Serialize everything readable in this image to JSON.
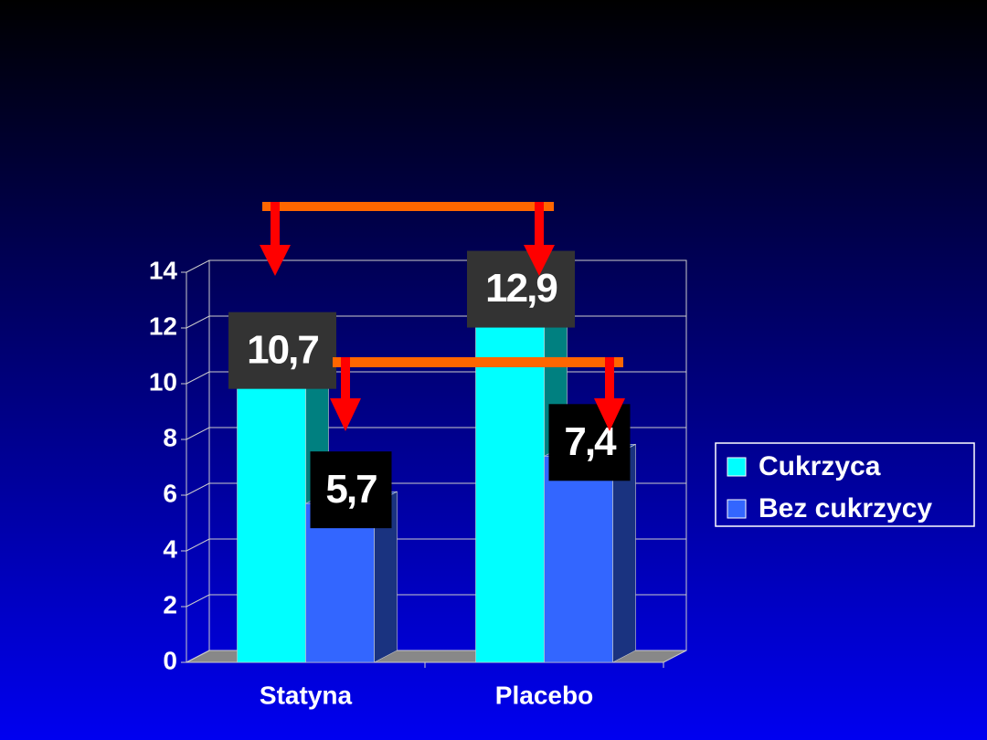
{
  "chart_data": {
    "type": "bar3d",
    "categories": [
      "Statyna",
      "Placebo"
    ],
    "series": [
      {
        "name": "Cukrzyca",
        "color": "#00ffff",
        "values": [
          10.7,
          12.9
        ],
        "value_labels": [
          "10,7",
          "12,9"
        ]
      },
      {
        "name": "Bez cukrzycy",
        "color": "#3366ff",
        "values": [
          5.7,
          7.4
        ],
        "value_labels": [
          "5,7",
          "7,4"
        ]
      }
    ],
    "ylim": [
      0,
      14
    ],
    "yticks": [
      0,
      2,
      4,
      6,
      8,
      10,
      12,
      14
    ],
    "grid": true,
    "legend": "right"
  }
}
